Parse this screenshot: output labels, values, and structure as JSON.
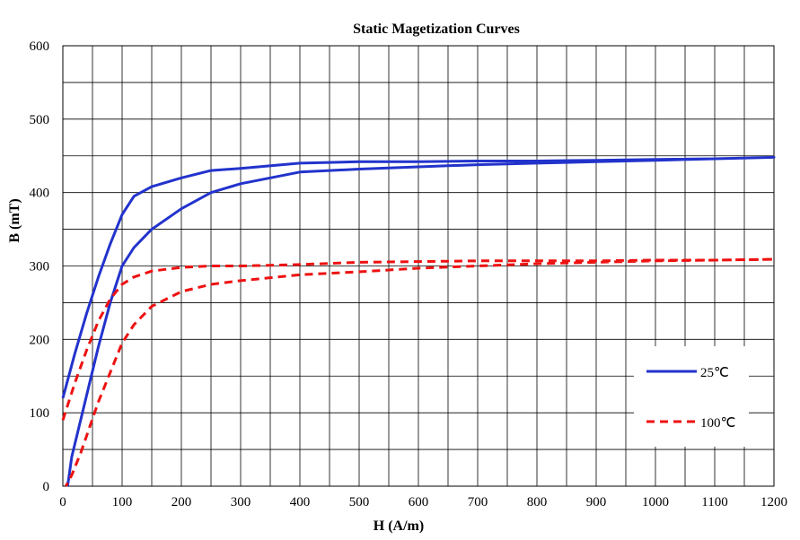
{
  "chart_data": {
    "type": "line",
    "title": "Static Magetization Curves",
    "xlabel": "H (A/m)",
    "ylabel": "B (mT)",
    "xlim": [
      0,
      1200
    ],
    "ylim": [
      0,
      600
    ],
    "grid": true,
    "legend_placement": "lower-right",
    "x_ticks": [
      "0",
      "100",
      "200",
      "300",
      "400",
      "500",
      "600",
      "700",
      "800",
      "900",
      "1000",
      "1100",
      "1200"
    ],
    "y_ticks": [
      "0",
      "100",
      "200",
      "300",
      "400",
      "500",
      "600"
    ],
    "series": [
      {
        "name": "25℃",
        "color": "#2233cc",
        "dash": "solid",
        "x": [
          0,
          20,
          40,
          60,
          80,
          100,
          120,
          150,
          200,
          250,
          300,
          400,
          500,
          600,
          700,
          800,
          900,
          1000,
          1100,
          1200,
          1100,
          1000,
          900,
          800,
          700,
          600,
          500,
          400,
          300,
          250,
          200,
          150,
          120,
          100,
          80,
          60,
          45,
          30,
          15,
          8
        ],
        "y": [
          120,
          180,
          235,
          285,
          330,
          370,
          395,
          408,
          420,
          430,
          433,
          440,
          442,
          442,
          443,
          443,
          444,
          445,
          446,
          448,
          446,
          444,
          442,
          440,
          438,
          435,
          432,
          428,
          412,
          400,
          378,
          350,
          325,
          300,
          250,
          190,
          140,
          90,
          40,
          0
        ]
      },
      {
        "name": "100℃",
        "color": "#ee1111",
        "dash": "dashed",
        "x": [
          0,
          20,
          40,
          60,
          80,
          100,
          120,
          150,
          200,
          250,
          300,
          400,
          500,
          600,
          700,
          800,
          900,
          1000,
          1100,
          1200,
          1100,
          1000,
          900,
          800,
          700,
          600,
          500,
          400,
          300,
          250,
          200,
          150,
          120,
          100,
          80,
          60,
          45,
          30,
          15,
          5
        ],
        "y": [
          90,
          140,
          185,
          225,
          255,
          275,
          285,
          293,
          298,
          300,
          300,
          302,
          305,
          306,
          307,
          307,
          307,
          308,
          308,
          309,
          308,
          307,
          305,
          303,
          300,
          297,
          292,
          288,
          280,
          275,
          265,
          245,
          220,
          195,
          155,
          115,
          80,
          45,
          15,
          0
        ]
      }
    ]
  }
}
